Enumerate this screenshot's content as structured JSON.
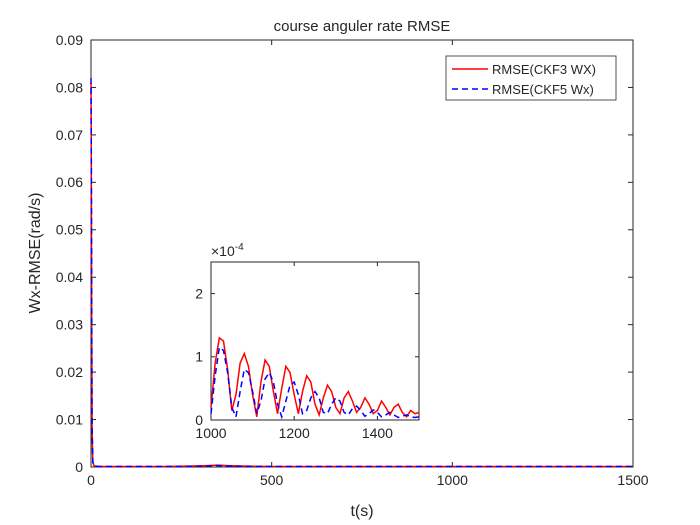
{
  "chart_data": [
    {
      "type": "line",
      "title": "course anguler rate RMSE",
      "xlabel": "t(s)",
      "ylabel": "Wx-RMSE(rad/s)",
      "xlim": [
        0,
        1500
      ],
      "ylim": [
        0,
        0.09
      ],
      "xticks": [
        0,
        500,
        1000,
        1500
      ],
      "xtick_labels": [
        "0",
        "500",
        "1000",
        "1500"
      ],
      "yticks": [
        0,
        0.01,
        0.02,
        0.03,
        0.04,
        0.05,
        0.06,
        0.07,
        0.08,
        0.09
      ],
      "ytick_labels": [
        "0",
        "0.01",
        "0.02",
        "0.03",
        "0.04",
        "0.05",
        "0.06",
        "0.07",
        "0.08",
        "0.09"
      ],
      "grid": false,
      "legend_position": "top-right",
      "series": [
        {
          "name": "RMSE(CKF3 WX)",
          "color": "#ff0000",
          "style": "solid",
          "x": [
            0,
            1,
            2,
            3,
            5,
            8,
            12,
            20,
            50,
            100,
            200,
            280,
            320,
            350,
            380,
            420,
            500,
            700,
            900,
            1100,
            1300,
            1500
          ],
          "y": [
            0.081,
            0.06,
            0.03,
            0.008,
            0.001,
            0.0003,
            0.0002,
            0.0001,
            0.0001,
            0.0001,
            0.0001,
            0.0002,
            0.0003,
            0.0004,
            0.0003,
            0.0002,
            0.0001,
            0.0001,
            0.0001,
            0.0001,
            0.0001,
            0.0001
          ]
        },
        {
          "name": "RMSE(CKF5 Wx)",
          "color": "#0000ff",
          "style": "dashed",
          "x": [
            0,
            1,
            2,
            3,
            5,
            8,
            12,
            20,
            50,
            100,
            200,
            280,
            320,
            350,
            380,
            420,
            500,
            700,
            900,
            1100,
            1300,
            1500
          ],
          "y": [
            0.082,
            0.062,
            0.032,
            0.009,
            0.0012,
            0.0003,
            0.0002,
            0.0001,
            0.0001,
            0.0001,
            0.0001,
            0.0001,
            0.0002,
            0.0003,
            0.0002,
            0.0001,
            0.0001,
            0.0001,
            0.0001,
            0.0001,
            0.0001,
            0.0001
          ]
        }
      ]
    },
    {
      "type": "line",
      "title": "",
      "xlim": [
        1000,
        1500
      ],
      "ylim": [
        0,
        2.5
      ],
      "y_multiplier": "×10",
      "y_exponent": "-4",
      "xticks": [
        1000,
        1200,
        1400
      ],
      "xtick_labels": [
        "1000",
        "1200",
        "1400"
      ],
      "yticks": [
        0,
        1,
        2
      ],
      "ytick_labels": [
        "0",
        "1",
        "2"
      ],
      "series": [
        {
          "name": "RMSE(CKF3 WX)",
          "color": "#ff0000",
          "style": "solid",
          "x": [
            1000,
            1010,
            1020,
            1030,
            1040,
            1050,
            1060,
            1070,
            1080,
            1090,
            1100,
            1110,
            1120,
            1130,
            1140,
            1150,
            1160,
            1170,
            1180,
            1190,
            1200,
            1210,
            1220,
            1230,
            1240,
            1250,
            1260,
            1270,
            1280,
            1290,
            1300,
            1310,
            1320,
            1330,
            1340,
            1350,
            1360,
            1370,
            1380,
            1390,
            1400,
            1410,
            1420,
            1430,
            1440,
            1450,
            1460,
            1470,
            1480,
            1490,
            1500
          ],
          "y": [
            0.2,
            0.9,
            1.3,
            1.25,
            0.8,
            0.15,
            0.4,
            0.9,
            1.05,
            0.85,
            0.4,
            0.05,
            0.6,
            0.95,
            0.85,
            0.45,
            0.1,
            0.5,
            0.85,
            0.75,
            0.4,
            0.1,
            0.45,
            0.7,
            0.6,
            0.25,
            0.08,
            0.35,
            0.55,
            0.45,
            0.2,
            0.1,
            0.35,
            0.45,
            0.3,
            0.12,
            0.2,
            0.35,
            0.25,
            0.1,
            0.15,
            0.3,
            0.2,
            0.08,
            0.2,
            0.25,
            0.12,
            0.05,
            0.15,
            0.1,
            0.12
          ]
        },
        {
          "name": "RMSE(CKF5 Wx)",
          "color": "#0000ff",
          "style": "dashed",
          "x": [
            1000,
            1010,
            1020,
            1030,
            1040,
            1050,
            1060,
            1070,
            1080,
            1090,
            1100,
            1110,
            1120,
            1130,
            1140,
            1150,
            1160,
            1170,
            1180,
            1190,
            1200,
            1210,
            1220,
            1230,
            1240,
            1250,
            1260,
            1270,
            1280,
            1290,
            1300,
            1310,
            1320,
            1330,
            1340,
            1350,
            1360,
            1370,
            1380,
            1390,
            1400,
            1410,
            1420,
            1430,
            1440,
            1450,
            1460,
            1470,
            1480,
            1490,
            1500
          ],
          "y": [
            0.1,
            0.7,
            1.15,
            1.1,
            0.75,
            0.2,
            0.05,
            0.45,
            0.8,
            0.75,
            0.45,
            0.1,
            0.3,
            0.65,
            0.75,
            0.6,
            0.25,
            0.05,
            0.3,
            0.55,
            0.6,
            0.4,
            0.1,
            0.15,
            0.35,
            0.45,
            0.35,
            0.12,
            0.1,
            0.25,
            0.35,
            0.3,
            0.12,
            0.08,
            0.18,
            0.22,
            0.15,
            0.06,
            0.1,
            0.16,
            0.12,
            0.05,
            0.08,
            0.12,
            0.08,
            0.04,
            0.06,
            0.08,
            0.05,
            0.04,
            0.05
          ]
        }
      ]
    }
  ]
}
